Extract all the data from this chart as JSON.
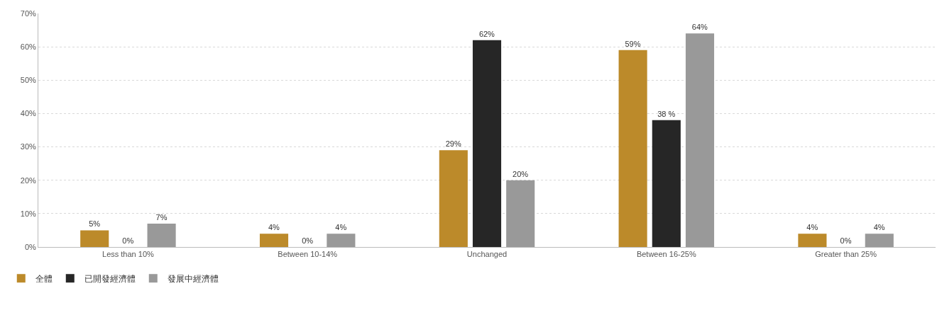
{
  "chart_data": {
    "type": "bar",
    "categories": [
      "Less than 10%",
      "Between 10-14%",
      "Unchanged",
      "Between 16-25%",
      "Greater than 25%"
    ],
    "series": [
      {
        "name": "全體",
        "color": "#bc8a2a",
        "values": [
          5,
          4,
          29,
          59,
          4
        ],
        "value_labels": [
          "5%",
          "4%",
          "29%",
          "59%",
          "4%"
        ]
      },
      {
        "name": "已開發經濟體",
        "color": "#262626",
        "values": [
          0,
          0,
          62,
          38,
          0
        ],
        "value_labels": [
          "0%",
          "0%",
          "62%",
          "38 %",
          "0%"
        ]
      },
      {
        "name": "發展中經濟體",
        "color": "#999999",
        "values": [
          7,
          4,
          20,
          64,
          4
        ],
        "value_labels": [
          "7%",
          "4%",
          "20%",
          "64%",
          "4%"
        ]
      }
    ],
    "ylim": [
      0,
      70
    ],
    "yticks": [
      {
        "value": 0,
        "label": "0%"
      },
      {
        "value": 10,
        "label": "10%"
      },
      {
        "value": 20,
        "label": "20%"
      },
      {
        "value": 30,
        "label": "30%"
      },
      {
        "value": 40,
        "label": "40%"
      },
      {
        "value": 50,
        "label": "50%"
      },
      {
        "value": 60,
        "label": "60%"
      },
      {
        "value": 70,
        "label": "70%"
      }
    ],
    "grid": "y",
    "legend": "bottom left"
  }
}
